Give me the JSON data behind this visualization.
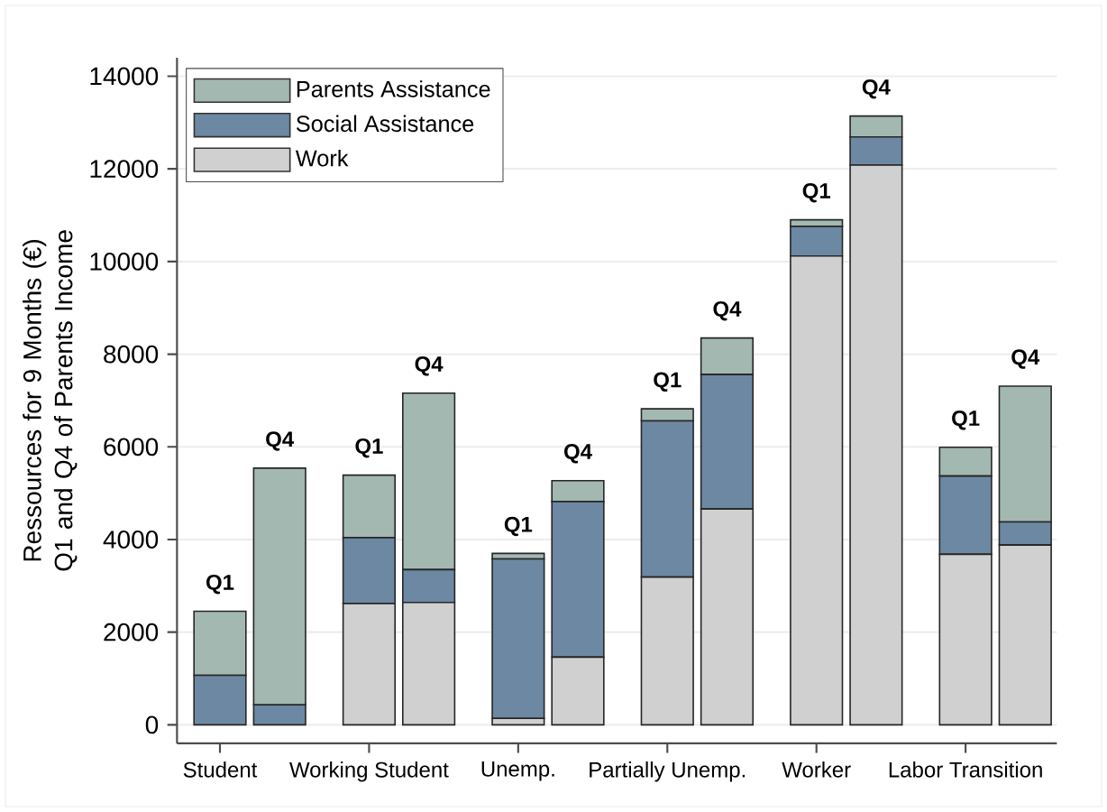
{
  "chart_data": {
    "type": "bar",
    "stacked": true,
    "categories": [
      "Student",
      null,
      "Working Student",
      null,
      "Unemp.",
      null,
      "Partially Unemp.",
      null,
      "Worker",
      null,
      "Labor Transition",
      null
    ],
    "series": [
      {
        "name": "Work",
        "color": "#d0d0d0",
        "values": [
          0,
          0,
          2620,
          2640,
          140,
          1460,
          3190,
          4660,
          10120,
          12080,
          3680,
          3880
        ]
      },
      {
        "name": "Social Assistance",
        "color": "#6d88a3",
        "values": [
          1070,
          430,
          1420,
          710,
          3440,
          3360,
          3370,
          2900,
          640,
          610,
          1690,
          500
        ]
      },
      {
        "name": "Parents Assistance",
        "color": "#a3b8b0",
        "values": [
          1380,
          5110,
          1350,
          3810,
          120,
          450,
          260,
          790,
          140,
          450,
          620,
          2930
        ]
      }
    ],
    "ylabel": "Ressources for 9 Months (€) Q1 and Q4 of Parents Income",
    "annotations": [
      "Q1",
      "Q4",
      "Q1",
      "Q4",
      "Q1",
      "Q4",
      "Q1",
      "Q4",
      "Q1",
      "Q4",
      "Q1",
      "Q4"
    ],
    "ylim": [
      -400,
      14400
    ],
    "yticks": [
      0,
      2000,
      4000,
      6000,
      8000,
      10000,
      12000,
      14000
    ],
    "grid": "y",
    "legend": "top left"
  }
}
